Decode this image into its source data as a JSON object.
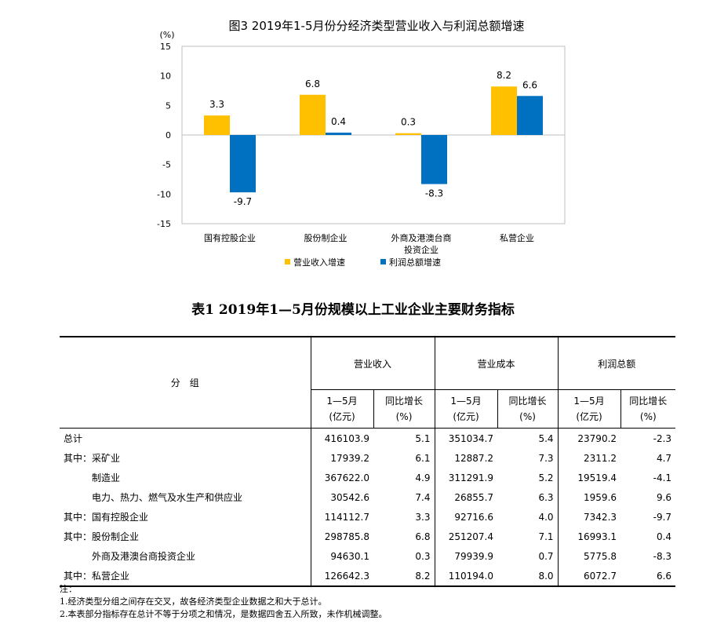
{
  "chart_data": {
    "type": "bar",
    "title": "图3 2019年1-5月份分经济类型营业收入与利润总额增速",
    "ylabel": "(%)",
    "ylim": [
      -15,
      15
    ],
    "yticks": [
      15,
      10,
      5,
      0,
      -5,
      -10,
      -15
    ],
    "categories": [
      "国有控股企业",
      "股份制企业",
      "外商及港澳台商投资企业",
      "私营企业"
    ],
    "category_labels": [
      [
        "国有控股企业"
      ],
      [
        "股份制企业"
      ],
      [
        "外商及港澳台商",
        "投资企业"
      ],
      [
        "私营企业"
      ]
    ],
    "series": [
      {
        "name": "营业收入增速",
        "values": [
          3.3,
          6.8,
          0.3,
          8.2
        ],
        "color": "#FFC000"
      },
      {
        "name": "利润总额增速",
        "values": [
          -9.7,
          0.4,
          -8.3,
          6.6
        ],
        "color": "#0070C0"
      }
    ],
    "grid": false,
    "legend": "bottom"
  },
  "table": {
    "title": "表1 2019年1—5月份规模以上工业企业主要财务指标",
    "group_header": "分　组",
    "metrics": [
      "营业收入",
      "营业成本",
      "利润总额"
    ],
    "period_label": "1—5月",
    "unit_label": "(亿元)",
    "growth_label": "同比增长",
    "growth_unit": "(%)",
    "rows": [
      {
        "label": "总计",
        "values": [
          "416103.9",
          "5.1",
          "351034.7",
          "5.4",
          "23790.2",
          "-2.3"
        ]
      },
      {
        "label": "其中：采矿业",
        "values": [
          "17939.2",
          "6.1",
          "12887.2",
          "7.3",
          "2311.2",
          "4.7"
        ]
      },
      {
        "label": "　　　制造业",
        "values": [
          "367622.0",
          "4.9",
          "311291.9",
          "5.2",
          "19519.4",
          "-4.1"
        ]
      },
      {
        "label": "　　　电力、热力、燃气及水生产和供应业",
        "values": [
          "30542.6",
          "7.4",
          "26855.7",
          "6.3",
          "1959.6",
          "9.6"
        ]
      },
      {
        "label": "其中：国有控股企业",
        "values": [
          "114112.7",
          "3.3",
          "92716.6",
          "4.0",
          "7342.3",
          "-9.7"
        ]
      },
      {
        "label": "其中：股份制企业",
        "values": [
          "298785.8",
          "6.8",
          "251207.4",
          "7.1",
          "16993.1",
          "0.4"
        ]
      },
      {
        "label": "　　　外商及港澳台商投资企业",
        "values": [
          "94630.1",
          "0.3",
          "79939.9",
          "0.7",
          "5775.8",
          "-8.3"
        ]
      },
      {
        "label": "其中：私营企业",
        "values": [
          "126642.3",
          "8.2",
          "110194.0",
          "8.0",
          "6072.7",
          "6.6"
        ]
      }
    ]
  },
  "notes": {
    "heading": "注：",
    "line1": "1.经济类型分组之间存在交叉，故各经济类型企业数据之和大于总计。",
    "line2": "2.本表部分指标存在总计不等于分项之和情况，是数据四舍五入所致，未作机械调整。"
  }
}
